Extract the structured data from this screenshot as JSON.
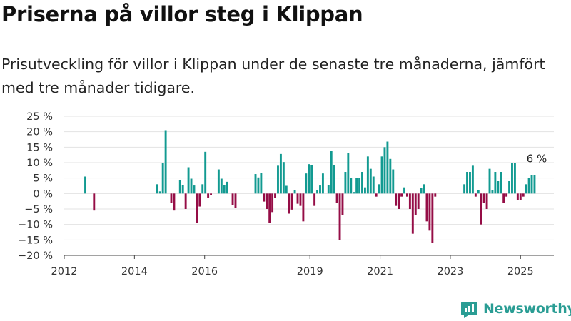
{
  "title": "Priserna på villor steg i Klippan",
  "subtitle": "Prisutveckling för villor i Klippan under de senaste tre månaderna, jämfört med tre månader tidigare.",
  "brand": "Newsworthy",
  "colors": {
    "positive": "#129a91",
    "negative": "#950d46",
    "grid": "#e3e3e3",
    "brand": "#2a9d94"
  },
  "chart_data": {
    "type": "bar",
    "ylabel": "",
    "xlabel": "",
    "y_unit": "%",
    "ylim": [
      -20,
      25
    ],
    "y_ticks": [
      25,
      20,
      15,
      10,
      5,
      0,
      -5,
      -10,
      -15,
      -20
    ],
    "y_tick_labels": [
      "25 %",
      "20 %",
      "15 %",
      "10 %",
      "5 %",
      "0 %",
      "−5 %",
      "−10 %",
      "−15 %",
      "−20 %"
    ],
    "x_ticks": [
      "2012",
      "2014",
      "2016",
      "2019",
      "2021",
      "2023",
      "2025"
    ],
    "x_tick_positions": [
      2012,
      2014,
      2016,
      2019,
      2021,
      2023,
      2025
    ],
    "xlim": [
      2012.0,
      2025.95
    ],
    "grid": true,
    "annotation": {
      "text": "6 %",
      "x": 2025.42,
      "y": 6
    },
    "bars": [
      {
        "x": 2012.6,
        "y": 5.5
      },
      {
        "x": 2012.85,
        "y": -5.5
      },
      {
        "x": 2014.65,
        "y": 3.0
      },
      {
        "x": 2014.73,
        "y": 0.7
      },
      {
        "x": 2014.81,
        "y": 10.0
      },
      {
        "x": 2014.89,
        "y": 20.5
      },
      {
        "x": 2015.05,
        "y": -3.0
      },
      {
        "x": 2015.13,
        "y": -5.5
      },
      {
        "x": 2015.3,
        "y": 4.3
      },
      {
        "x": 2015.38,
        "y": 2.7
      },
      {
        "x": 2015.46,
        "y": -5.0
      },
      {
        "x": 2015.54,
        "y": 8.5
      },
      {
        "x": 2015.62,
        "y": 4.8
      },
      {
        "x": 2015.7,
        "y": 2.6
      },
      {
        "x": 2015.78,
        "y": -9.6
      },
      {
        "x": 2015.86,
        "y": -4.2
      },
      {
        "x": 2015.94,
        "y": 3.0
      },
      {
        "x": 2016.02,
        "y": 13.5
      },
      {
        "x": 2016.1,
        "y": -1.3
      },
      {
        "x": 2016.18,
        "y": -0.5
      },
      {
        "x": 2016.4,
        "y": 7.8
      },
      {
        "x": 2016.48,
        "y": 4.8
      },
      {
        "x": 2016.56,
        "y": 2.8
      },
      {
        "x": 2016.64,
        "y": 3.8
      },
      {
        "x": 2016.8,
        "y": -3.7
      },
      {
        "x": 2016.88,
        "y": -4.6
      },
      {
        "x": 2017.45,
        "y": 6.3
      },
      {
        "x": 2017.53,
        "y": 5.2
      },
      {
        "x": 2017.61,
        "y": 6.7
      },
      {
        "x": 2017.69,
        "y": -2.6
      },
      {
        "x": 2017.77,
        "y": -5.0
      },
      {
        "x": 2017.85,
        "y": -9.5
      },
      {
        "x": 2017.93,
        "y": -6.0
      },
      {
        "x": 2018.01,
        "y": -1.5
      },
      {
        "x": 2018.09,
        "y": 9.0
      },
      {
        "x": 2018.17,
        "y": 12.8
      },
      {
        "x": 2018.25,
        "y": 10.2
      },
      {
        "x": 2018.33,
        "y": 2.5
      },
      {
        "x": 2018.41,
        "y": -6.5
      },
      {
        "x": 2018.49,
        "y": -5.2
      },
      {
        "x": 2018.57,
        "y": 1.2
      },
      {
        "x": 2018.65,
        "y": -3.3
      },
      {
        "x": 2018.73,
        "y": -4.0
      },
      {
        "x": 2018.81,
        "y": -9.0
      },
      {
        "x": 2018.89,
        "y": 6.5
      },
      {
        "x": 2018.97,
        "y": 9.5
      },
      {
        "x": 2019.05,
        "y": 9.2
      },
      {
        "x": 2019.13,
        "y": -4.0
      },
      {
        "x": 2019.21,
        "y": 1.2
      },
      {
        "x": 2019.29,
        "y": 2.6
      },
      {
        "x": 2019.37,
        "y": 6.5
      },
      {
        "x": 2019.53,
        "y": 2.8
      },
      {
        "x": 2019.61,
        "y": 13.8
      },
      {
        "x": 2019.69,
        "y": 9.2
      },
      {
        "x": 2019.77,
        "y": -3.0
      },
      {
        "x": 2019.85,
        "y": -15.0
      },
      {
        "x": 2019.93,
        "y": -7.0
      },
      {
        "x": 2020.01,
        "y": 7.0
      },
      {
        "x": 2020.09,
        "y": 13.0
      },
      {
        "x": 2020.17,
        "y": 5.0
      },
      {
        "x": 2020.25,
        "y": 0.5
      },
      {
        "x": 2020.33,
        "y": 5.0
      },
      {
        "x": 2020.41,
        "y": 5.0
      },
      {
        "x": 2020.49,
        "y": 7.0
      },
      {
        "x": 2020.57,
        "y": 2.0
      },
      {
        "x": 2020.65,
        "y": 12.0
      },
      {
        "x": 2020.73,
        "y": 8.0
      },
      {
        "x": 2020.81,
        "y": 5.5
      },
      {
        "x": 2020.89,
        "y": -1.0
      },
      {
        "x": 2020.97,
        "y": 3.0
      },
      {
        "x": 2021.05,
        "y": 12.0
      },
      {
        "x": 2021.13,
        "y": 15.0
      },
      {
        "x": 2021.21,
        "y": 16.8
      },
      {
        "x": 2021.29,
        "y": 11.2
      },
      {
        "x": 2021.37,
        "y": 7.8
      },
      {
        "x": 2021.45,
        "y": -4.0
      },
      {
        "x": 2021.53,
        "y": -5.0
      },
      {
        "x": 2021.61,
        "y": -1.0
      },
      {
        "x": 2021.69,
        "y": 2.0
      },
      {
        "x": 2021.77,
        "y": -1.0
      },
      {
        "x": 2021.85,
        "y": -5.0
      },
      {
        "x": 2021.93,
        "y": -13.0
      },
      {
        "x": 2022.01,
        "y": -7.0
      },
      {
        "x": 2022.09,
        "y": -5.0
      },
      {
        "x": 2022.17,
        "y": 1.8
      },
      {
        "x": 2022.25,
        "y": 3.0
      },
      {
        "x": 2022.33,
        "y": -9.0
      },
      {
        "x": 2022.41,
        "y": -12.0
      },
      {
        "x": 2022.49,
        "y": -16.0
      },
      {
        "x": 2022.57,
        "y": -1.0
      },
      {
        "x": 2023.4,
        "y": 3.0
      },
      {
        "x": 2023.48,
        "y": 7.0
      },
      {
        "x": 2023.56,
        "y": 7.0
      },
      {
        "x": 2023.64,
        "y": 9.0
      },
      {
        "x": 2023.72,
        "y": -1.0
      },
      {
        "x": 2023.8,
        "y": 1.0
      },
      {
        "x": 2023.88,
        "y": -10.0
      },
      {
        "x": 2023.96,
        "y": -3.0
      },
      {
        "x": 2024.04,
        "y": -5.0
      },
      {
        "x": 2024.12,
        "y": 8.0
      },
      {
        "x": 2024.2,
        "y": 1.0
      },
      {
        "x": 2024.28,
        "y": 7.0
      },
      {
        "x": 2024.36,
        "y": 4.0
      },
      {
        "x": 2024.44,
        "y": 7.0
      },
      {
        "x": 2024.52,
        "y": -3.0
      },
      {
        "x": 2024.6,
        "y": -1.0
      },
      {
        "x": 2024.68,
        "y": 4.0
      },
      {
        "x": 2024.76,
        "y": 10.0
      },
      {
        "x": 2024.84,
        "y": 10.0
      },
      {
        "x": 2024.92,
        "y": -2.0
      },
      {
        "x": 2025.0,
        "y": -2.0
      },
      {
        "x": 2025.08,
        "y": -1.0
      },
      {
        "x": 2025.16,
        "y": 3.0
      },
      {
        "x": 2025.24,
        "y": 5.0
      },
      {
        "x": 2025.32,
        "y": 6.0
      },
      {
        "x": 2025.4,
        "y": 6.0
      }
    ]
  }
}
